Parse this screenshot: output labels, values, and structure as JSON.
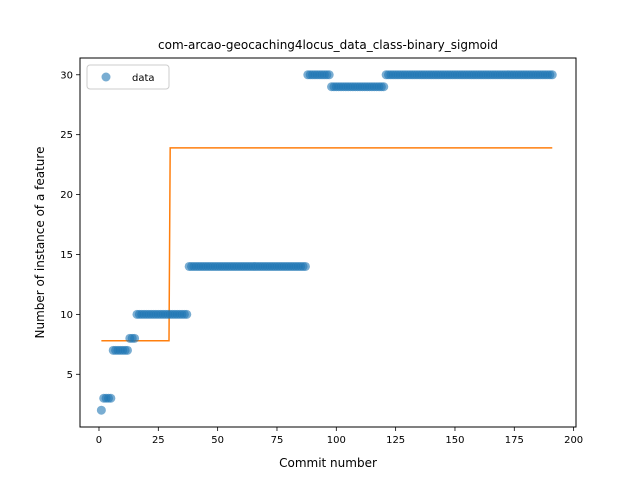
{
  "chart_data": {
    "type": "scatter",
    "title": "com-arcao-geocaching4locus_data_class-binary_sigmoid",
    "xlabel": "Commit number",
    "ylabel": "Number of instance of a feature",
    "xlim": [
      -8,
      201
    ],
    "ylim": [
      0.6,
      31.4
    ],
    "xticks": [
      0,
      25,
      50,
      75,
      100,
      125,
      150,
      175,
      200
    ],
    "yticks": [
      5,
      10,
      15,
      20,
      25,
      30
    ],
    "legend": {
      "placement": "upper-left",
      "entries": [
        "data"
      ]
    },
    "grid": false,
    "series": [
      {
        "name": "data",
        "kind": "markers",
        "color": "#1f77b4",
        "segments": [
          {
            "x_from": 1,
            "x_to": 1,
            "y": 2
          },
          {
            "x_from": 2,
            "x_to": 5,
            "y": 3
          },
          {
            "x_from": 6,
            "x_to": 12,
            "y": 7
          },
          {
            "x_from": 13,
            "x_to": 15,
            "y": 8
          },
          {
            "x_from": 16,
            "x_to": 37,
            "y": 10
          },
          {
            "x_from": 38,
            "x_to": 87,
            "y": 14
          },
          {
            "x_from": 88,
            "x_to": 97,
            "y": 30
          },
          {
            "x_from": 98,
            "x_to": 120,
            "y": 29
          },
          {
            "x_from": 121,
            "x_to": 191,
            "y": 30
          }
        ]
      },
      {
        "kind": "line",
        "color": "#ff7f0e",
        "points": [
          [
            1,
            7.8
          ],
          [
            29.5,
            7.8
          ],
          [
            30,
            23.9
          ],
          [
            191,
            23.9
          ]
        ]
      }
    ]
  }
}
